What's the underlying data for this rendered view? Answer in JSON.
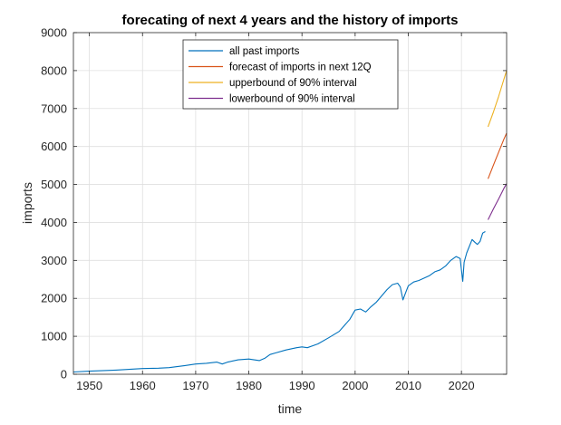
{
  "chart_data": {
    "type": "line",
    "title": "forecating of next 4 years and the history of imports",
    "xlabel": "time",
    "ylabel": "imports",
    "xlim": [
      1947,
      2028.5
    ],
    "ylim": [
      0,
      9000
    ],
    "xticks": [
      1950,
      1960,
      1970,
      1980,
      1990,
      2000,
      2010,
      2020
    ],
    "yticks": [
      0,
      1000,
      2000,
      3000,
      4000,
      5000,
      6000,
      7000,
      8000,
      9000
    ],
    "grid": true,
    "legend_position": "top-center",
    "series": [
      {
        "name": "all past imports",
        "color": "#0072bd",
        "x": [
          1947,
          1950,
          1955,
          1960,
          1963,
          1965,
          1968,
          1970,
          1972,
          1974,
          1975,
          1976,
          1978,
          1980,
          1981,
          1982,
          1983,
          1984,
          1985,
          1987,
          1989,
          1990,
          1991,
          1993,
          1995,
          1997,
          1999,
          2000,
          2001,
          2002,
          2003,
          2004,
          2006,
          2007,
          2008,
          2008.5,
          2009,
          2009.5,
          2010,
          2011,
          2012,
          2014,
          2015,
          2016,
          2017,
          2018,
          2019,
          2019.75,
          2020.25,
          2020.5,
          2021,
          2022,
          2022.5,
          2023,
          2023.5,
          2024,
          2024.5
        ],
        "y": [
          60,
          80,
          110,
          150,
          160,
          175,
          230,
          270,
          290,
          320,
          270,
          320,
          380,
          400,
          380,
          360,
          420,
          520,
          560,
          640,
          700,
          720,
          700,
          800,
          960,
          1130,
          1450,
          1690,
          1720,
          1640,
          1780,
          1900,
          2230,
          2360,
          2400,
          2300,
          1960,
          2150,
          2330,
          2430,
          2470,
          2600,
          2700,
          2750,
          2850,
          3000,
          3100,
          3050,
          2450,
          2950,
          3200,
          3550,
          3480,
          3420,
          3500,
          3720,
          3760
        ]
      },
      {
        "name": "forecast of imports in next 12Q",
        "color": "#d95319",
        "x": [
          2025,
          2026,
          2027,
          2028,
          2028.5
        ],
        "y": [
          5150,
          5500,
          5850,
          6200,
          6350
        ]
      },
      {
        "name": "upperbound of 90% interval",
        "color": "#edb120",
        "x": [
          2025,
          2026,
          2027,
          2028,
          2028.5
        ],
        "y": [
          6520,
          6900,
          7320,
          7780,
          8000
        ]
      },
      {
        "name": "lowerbound of 90% interval",
        "color": "#7e2f8e",
        "x": [
          2025,
          2026,
          2027,
          2028,
          2028.5
        ],
        "y": [
          4070,
          4350,
          4620,
          4900,
          5020
        ]
      }
    ]
  }
}
